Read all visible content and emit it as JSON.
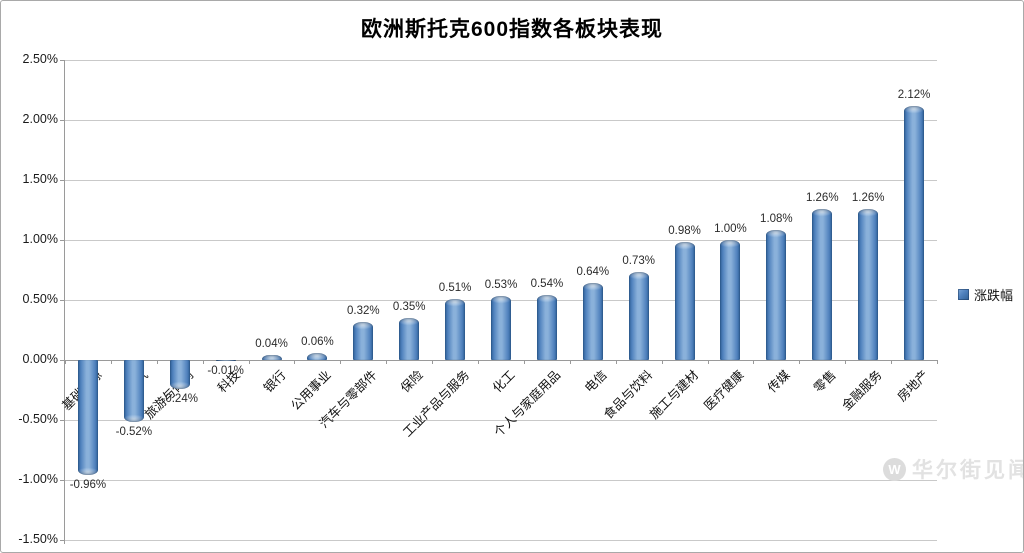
{
  "legend": {
    "label": "涨跌幅",
    "swatch_color": "#4f81bd"
  },
  "watermark": {
    "logo_letter": "W",
    "text": "华尔街见闻"
  },
  "chart_data": {
    "type": "bar",
    "title": "欧洲斯托克600指数各板块表现",
    "series_name": "涨跌幅",
    "categories": [
      "基础资源",
      "油气",
      "旅游与休闲",
      "科技",
      "银行",
      "公用事业",
      "汽车与零部件",
      "保险",
      "工业产品与服务",
      "化工",
      "个人与家庭用品",
      "电信",
      "食品与饮料",
      "施工与建材",
      "医疗健康",
      "传媒",
      "零售",
      "金融服务",
      "房地产"
    ],
    "values": [
      -0.96,
      -0.52,
      -0.24,
      -0.01,
      0.04,
      0.06,
      0.32,
      0.35,
      0.51,
      0.53,
      0.54,
      0.64,
      0.73,
      0.98,
      1.0,
      1.08,
      1.26,
      1.26,
      2.12
    ],
    "data_labels": [
      "-0.96%",
      "-0.52%",
      "-0.24%",
      "-0.01%",
      "0.04%",
      "0.06%",
      "0.32%",
      "0.35%",
      "0.51%",
      "0.53%",
      "0.54%",
      "0.64%",
      "0.73%",
      "0.98%",
      "1.00%",
      "1.08%",
      "1.26%",
      "1.26%",
      "2.12%"
    ],
    "unit": "%",
    "xlabel": "",
    "ylabel": "",
    "ylim": [
      -1.5,
      2.5
    ],
    "ytick_step": 0.5,
    "ytick_labels": [
      "2.50%",
      "2.00%",
      "1.50%",
      "1.00%",
      "0.50%",
      "0.00%",
      "-0.50%",
      "-1.00%",
      "-1.50%"
    ],
    "grid": true,
    "legend_position": "right",
    "bar_color": "#4f81bd",
    "bar_color_light": "#8ab1da",
    "bar_color_dark": "#2c5c92"
  }
}
